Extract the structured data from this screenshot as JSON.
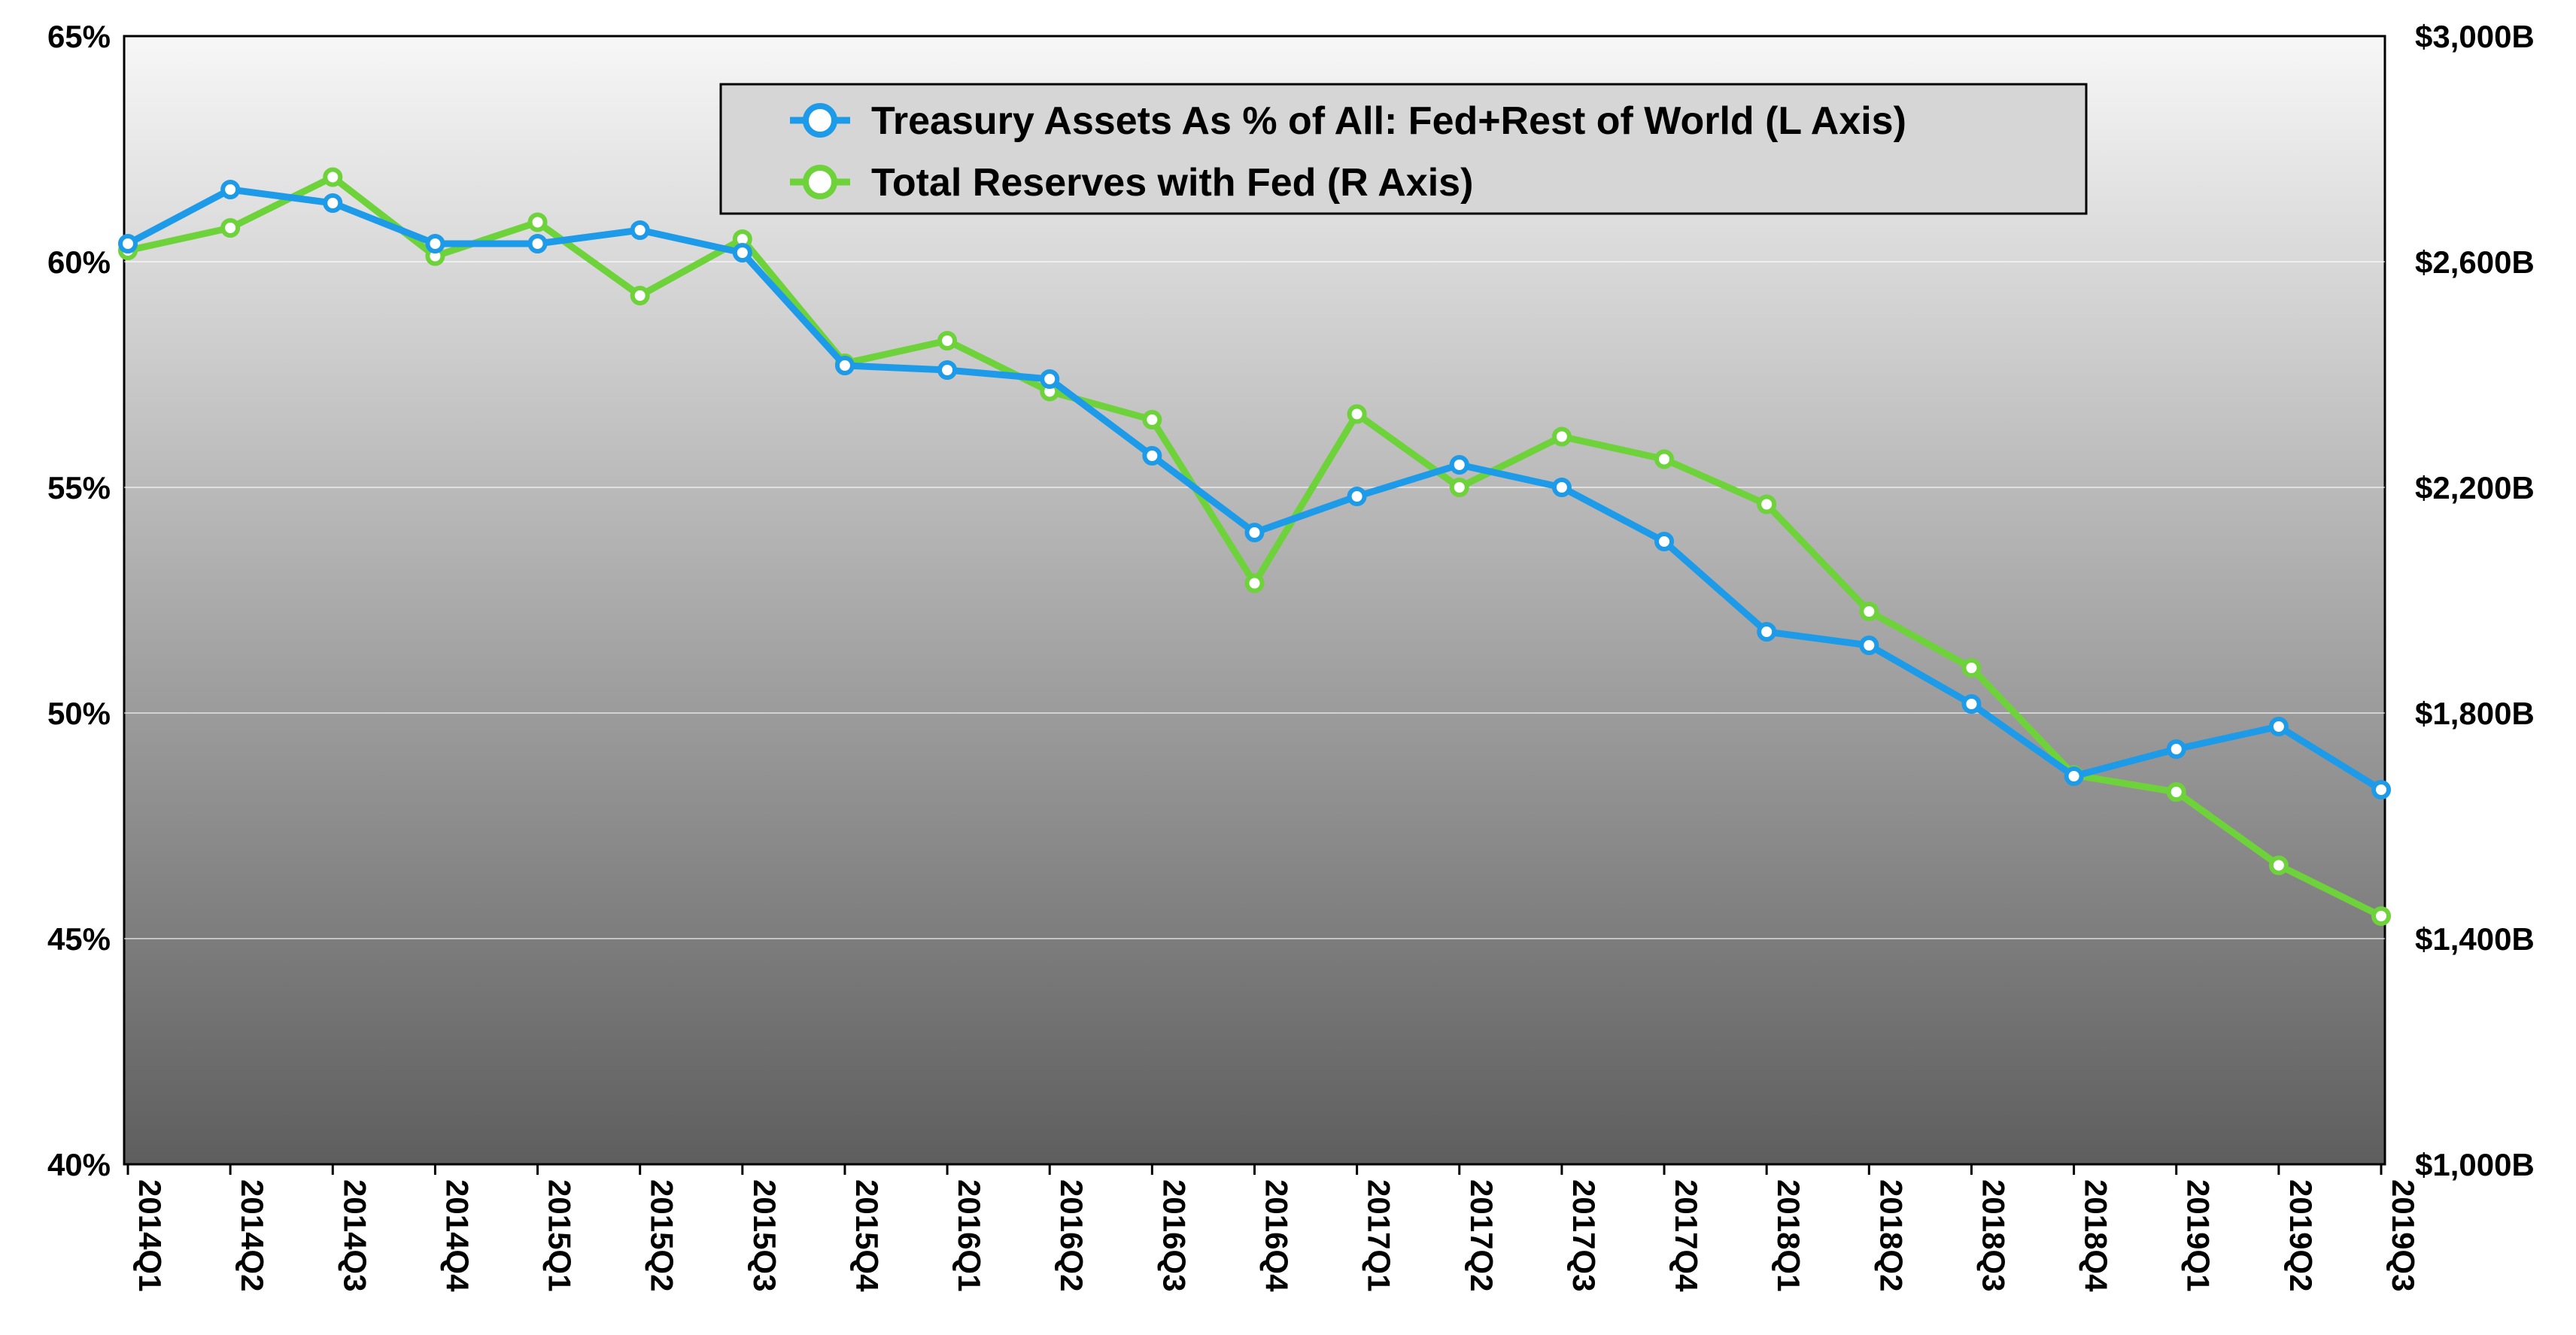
{
  "chart_data": {
    "type": "line",
    "categories": [
      "2014Q1",
      "2014Q2",
      "2014Q3",
      "2014Q4",
      "2015Q1",
      "2015Q2",
      "2015Q3",
      "2015Q4",
      "2016Q1",
      "2016Q2",
      "2016Q3",
      "2016Q4",
      "2017Q1",
      "2017Q2",
      "2017Q3",
      "2017Q4",
      "2018Q1",
      "2018Q2",
      "2018Q3",
      "2018Q4",
      "2019Q1",
      "2019Q2",
      "2019Q3"
    ],
    "series": [
      {
        "name": "Treasury Assets As % of All: Fed+Rest of World (L Axis)",
        "axis": "left",
        "color": "#1e9be8",
        "values": [
          60.4,
          61.6,
          61.3,
          60.4,
          60.4,
          60.7,
          60.2,
          57.7,
          57.6,
          57.4,
          55.7,
          54.0,
          54.8,
          55.5,
          55.0,
          53.8,
          51.8,
          51.5,
          50.2,
          48.6,
          49.2,
          49.7,
          48.3
        ]
      },
      {
        "name": "Total Reserves with Fed (R Axis)",
        "axis": "right",
        "color": "#6ed23a",
        "values": [
          2620,
          2660,
          2750,
          2610,
          2670,
          2540,
          2640,
          2420,
          2460,
          2370,
          2320,
          2030,
          2330,
          2200,
          2290,
          2250,
          2170,
          1980,
          1880,
          1690,
          1660,
          1530,
          1440
        ]
      }
    ],
    "left_axis": {
      "min": 40,
      "max": 65,
      "ticks": [
        40,
        45,
        50,
        55,
        60,
        65
      ],
      "tick_labels": [
        "40%",
        "45%",
        "50%",
        "55%",
        "60%",
        "65%"
      ]
    },
    "right_axis": {
      "min": 1000,
      "max": 3000,
      "ticks": [
        1000,
        1400,
        1800,
        2200,
        2600,
        3000
      ],
      "tick_labels": [
        "$1,000B",
        "$1,400B",
        "$1,800B",
        "$2,200B",
        "$2,600B",
        "$3,000B"
      ]
    },
    "grid": true,
    "legend_position": "top-center",
    "background": "gradient light-gray to dark-gray"
  }
}
